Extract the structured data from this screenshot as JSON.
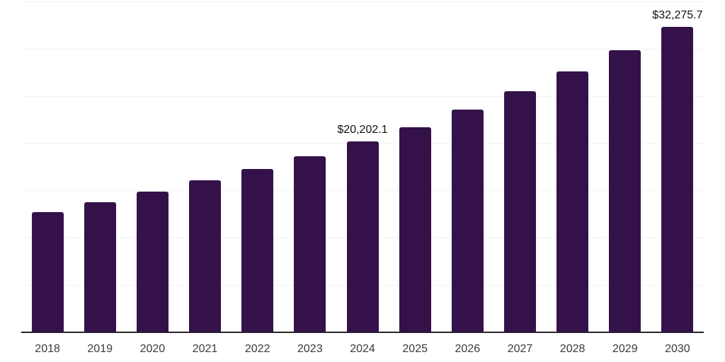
{
  "chart_data": {
    "type": "bar",
    "title": "",
    "xlabel": "",
    "ylabel": "",
    "categories": [
      "2018",
      "2019",
      "2020",
      "2021",
      "2022",
      "2023",
      "2024",
      "2025",
      "2026",
      "2027",
      "2028",
      "2029",
      "2030"
    ],
    "values": [
      12750,
      13790,
      14910,
      16100,
      17300,
      18640,
      20202.1,
      21690,
      23560,
      25500,
      27580,
      29820,
      32275.7
    ],
    "data_labels": [
      {
        "category": "2024",
        "text": "$20,202.1"
      },
      {
        "category": "2030",
        "text": "$32,275.7"
      }
    ],
    "ylim": [
      0,
      35000
    ],
    "grid_step": 5000,
    "grid": true,
    "legend": false,
    "y_axis_ticks_visible": false,
    "colors": {
      "bar": "#341249",
      "gridline": "#f2f2f2",
      "axis_line": "#262626",
      "data_label_text": "#111111",
      "x_tick_text": "#3a3a3a",
      "background": "#ffffff"
    }
  }
}
